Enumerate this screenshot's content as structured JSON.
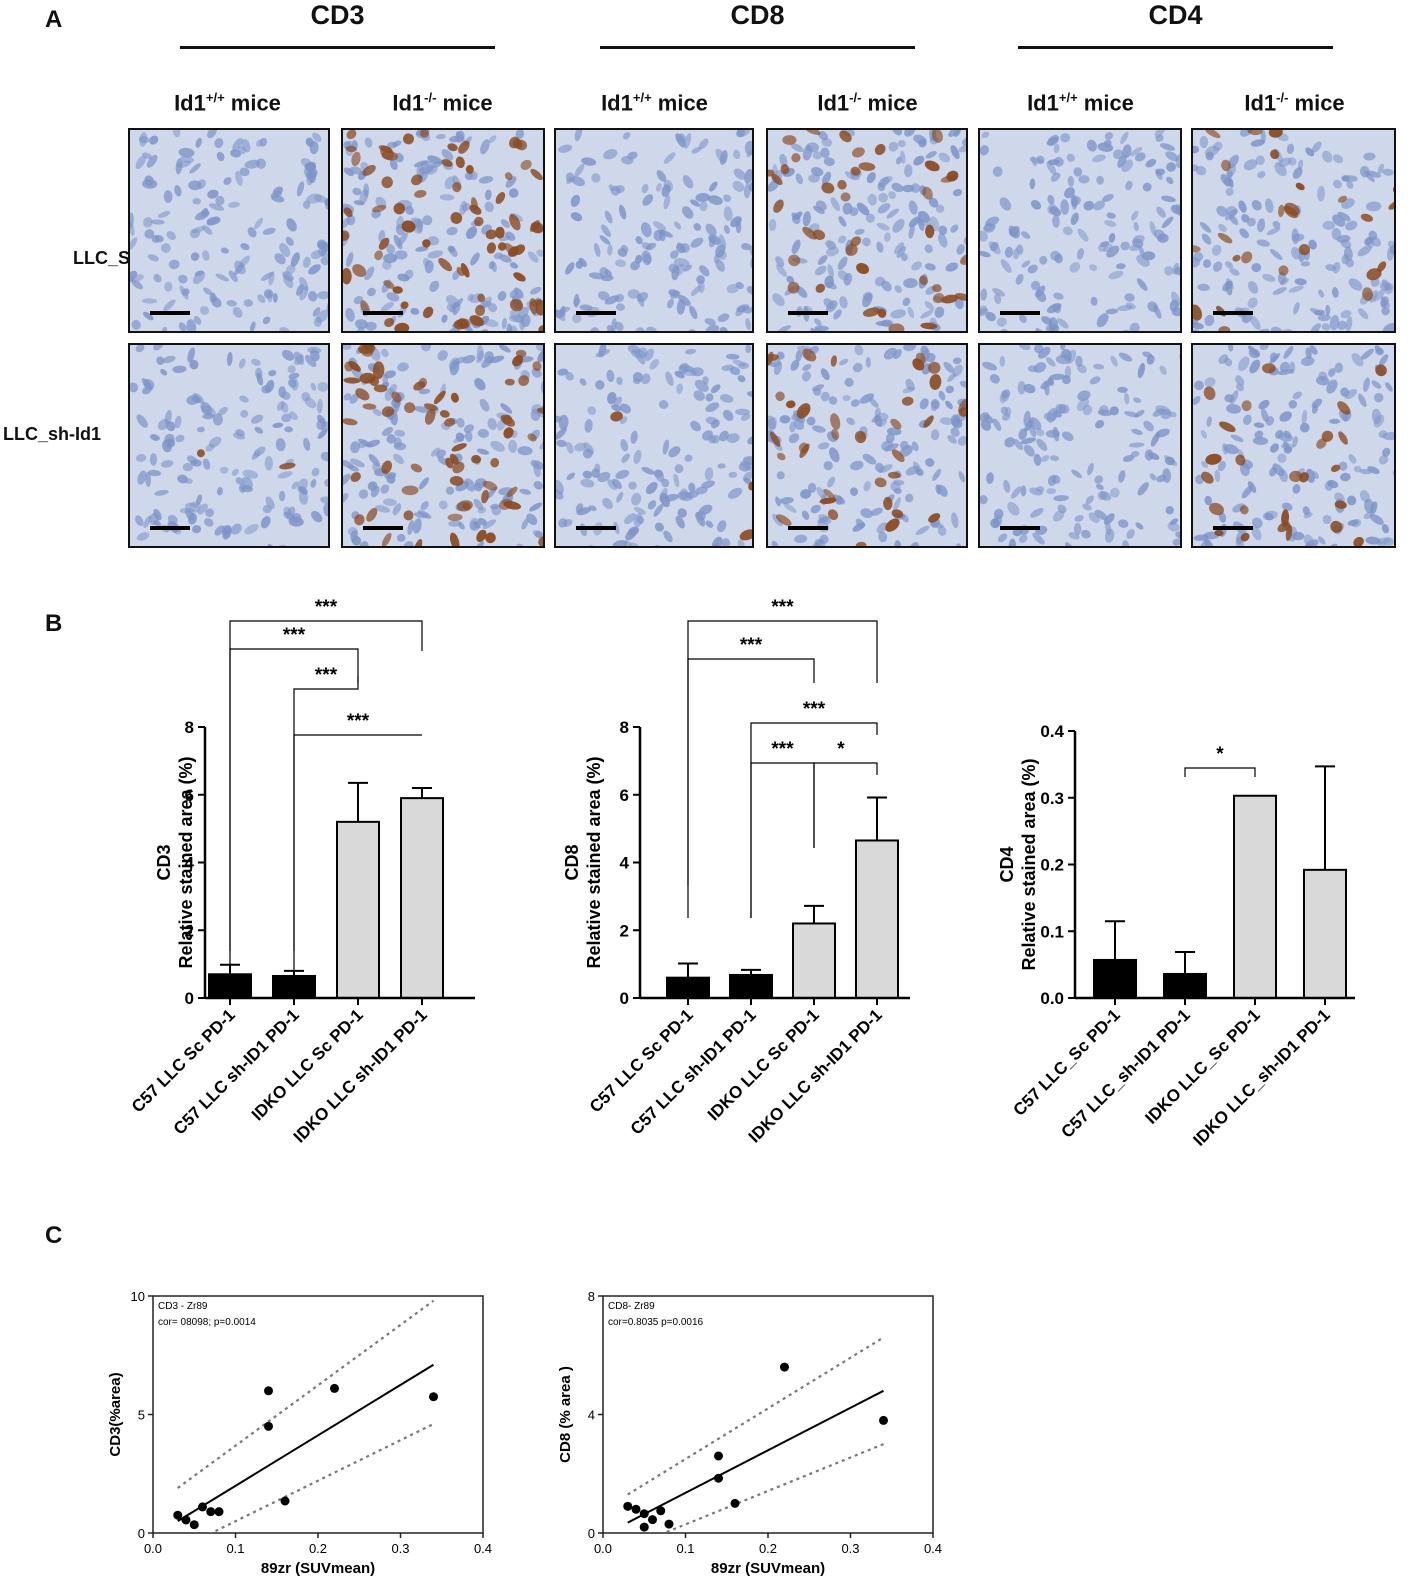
{
  "panel_a": {
    "letter": "A",
    "markers": [
      {
        "label": "CD3",
        "groups": [
          {
            "base": "Id1",
            "sup": "+/+",
            "suffix": " mice"
          },
          {
            "base": "Id1",
            "sup": "-/-",
            "suffix": " mice"
          }
        ]
      },
      {
        "label": "CD8",
        "groups": [
          {
            "base": "Id1",
            "sup": "+/+",
            "suffix": " mice"
          },
          {
            "base": "Id1",
            "sup": "-/-",
            "suffix": " mice"
          }
        ]
      },
      {
        "label": "CD4",
        "groups": [
          {
            "base": "Id1",
            "sup": "+/+",
            "suffix": " mice"
          },
          {
            "base": "Id1",
            "sup": "-/-",
            "suffix": " mice"
          }
        ]
      }
    ],
    "rows": [
      "LLC_Sc",
      "LLC_sh-Id1"
    ],
    "stain_colors": {
      "background": "#cfd8ea",
      "nucleus": "#7d93c8",
      "positive": "#8a4a22"
    },
    "positive_density": [
      [
        0.0,
        1.0,
        0.0,
        0.55,
        0.0,
        0.35
      ],
      [
        0.03,
        0.9,
        0.04,
        0.5,
        0.0,
        0.35
      ]
    ]
  },
  "panel_b": {
    "letter": "B"
  },
  "panel_c": {
    "letter": "C"
  },
  "chart_data": [
    {
      "type": "bar",
      "title": "",
      "ylabel": "CD3\nRelative stained area (%)",
      "categories": [
        "C57 LLC Sc PD-1",
        "C57 LLC sh-ID1 PD-1",
        "IDKO LLC Sc PD-1",
        "IDKO LLC sh-ID1 PD-1"
      ],
      "values": [
        0.7,
        0.65,
        5.2,
        5.9
      ],
      "errors": [
        0.28,
        0.15,
        1.15,
        0.3
      ],
      "bar_colors": [
        "#000000",
        "#000000",
        "#d9d9d9",
        "#d9d9d9"
      ],
      "ylim": [
        0,
        8
      ],
      "yticks": [
        "0",
        "2",
        "4",
        "6",
        "8"
      ],
      "significance": [
        {
          "from": 0,
          "to": 3,
          "label": "***"
        },
        {
          "from": 0,
          "to": 2,
          "label": "***"
        },
        {
          "from": 1,
          "to": 2,
          "label": "***"
        },
        {
          "from": 1,
          "to": 3,
          "label": "***"
        }
      ]
    },
    {
      "type": "bar",
      "title": "",
      "ylabel": "CD8\nRelative stained area (%)",
      "categories": [
        "C57 LLC Sc PD-1",
        "C57 LLC sh-ID1 PD-1",
        "IDKO LLC Sc PD-1",
        "IDKO LLC sh-ID1 PD-1"
      ],
      "values": [
        0.6,
        0.68,
        2.2,
        4.65
      ],
      "errors": [
        0.42,
        0.15,
        0.52,
        1.27
      ],
      "bar_colors": [
        "#000000",
        "#000000",
        "#d9d9d9",
        "#d9d9d9"
      ],
      "ylim": [
        0,
        8
      ],
      "yticks": [
        "0",
        "2",
        "4",
        "6",
        "8"
      ],
      "significance": [
        {
          "from": 0,
          "to": 3,
          "label": "***"
        },
        {
          "from": 0,
          "to": 2,
          "label": "***"
        },
        {
          "from": 1,
          "to": 3,
          "label": "***"
        },
        {
          "from": 1,
          "to": 2,
          "label": "***"
        },
        {
          "from": 2,
          "to": 3,
          "label": "*"
        }
      ]
    },
    {
      "type": "bar",
      "title": "",
      "ylabel": "CD4\nRelative stained area (%)",
      "categories": [
        "C57 LLC_Sc PD-1",
        "C57 LLC_sh-ID1 PD-1",
        "IDKO LLC_Sc PD-1",
        "IDKO LLC_sh-ID1 PD-1"
      ],
      "values": [
        0.057,
        0.036,
        0.303,
        0.192
      ],
      "errors": [
        0.058,
        0.033,
        0.0,
        0.155
      ],
      "bar_colors": [
        "#000000",
        "#000000",
        "#d9d9d9",
        "#d9d9d9"
      ],
      "ylim": [
        0,
        0.4
      ],
      "yticks": [
        "0.0",
        "0.1",
        "0.2",
        "0.3",
        "0.4"
      ],
      "significance": [
        {
          "from": 1,
          "to": 2,
          "label": "*"
        }
      ]
    },
    {
      "type": "scatter",
      "title": "",
      "xlabel": "89zr (SUVmean)",
      "ylabel": "CD3(%area)",
      "annotation": [
        "CD3 - Zr89",
        "cor= 08098; p=0.0014"
      ],
      "xlim": [
        0.0,
        0.4
      ],
      "ylim": [
        0,
        10
      ],
      "xticks": [
        "0.0",
        "0.1",
        "0.2",
        "0.3",
        "0.4"
      ],
      "yticks": [
        "0",
        "5",
        "10"
      ],
      "points": [
        [
          0.03,
          0.75
        ],
        [
          0.04,
          0.55
        ],
        [
          0.05,
          0.35
        ],
        [
          0.06,
          1.1
        ],
        [
          0.07,
          0.9
        ],
        [
          0.08,
          0.9
        ],
        [
          0.14,
          6.0
        ],
        [
          0.14,
          4.5
        ],
        [
          0.16,
          1.35
        ],
        [
          0.22,
          6.1
        ],
        [
          0.34,
          5.75
        ]
      ],
      "fit_line": {
        "x": [
          0.03,
          0.34
        ],
        "y": [
          0.5,
          7.1
        ]
      },
      "ci_upper": {
        "x": [
          0.03,
          0.34
        ],
        "y": [
          1.9,
          9.8
        ]
      },
      "ci_lower": {
        "x": [
          0.03,
          0.34
        ],
        "y": [
          -0.7,
          4.6
        ]
      }
    },
    {
      "type": "scatter",
      "title": "",
      "xlabel": "89zr (SUVmean)",
      "ylabel": "CD8 (% area )",
      "annotation": [
        "CD8- Zr89",
        "cor=0.8035 p=0.0016"
      ],
      "xlim": [
        0.0,
        0.4
      ],
      "ylim": [
        0,
        8
      ],
      "xticks": [
        "0.0",
        "0.1",
        "0.2",
        "0.3",
        "0.4"
      ],
      "yticks": [
        "0",
        "4",
        "8"
      ],
      "points": [
        [
          0.03,
          0.9
        ],
        [
          0.04,
          0.8
        ],
        [
          0.05,
          0.2
        ],
        [
          0.05,
          0.65
        ],
        [
          0.06,
          0.45
        ],
        [
          0.07,
          0.75
        ],
        [
          0.08,
          0.3
        ],
        [
          0.14,
          2.6
        ],
        [
          0.14,
          1.85
        ],
        [
          0.16,
          1.0
        ],
        [
          0.22,
          5.6
        ],
        [
          0.34,
          3.8
        ]
      ],
      "fit_line": {
        "x": [
          0.03,
          0.34
        ],
        "y": [
          0.35,
          4.8
        ]
      },
      "ci_upper": {
        "x": [
          0.03,
          0.34
        ],
        "y": [
          1.3,
          6.6
        ]
      },
      "ci_lower": {
        "x": [
          0.03,
          0.34
        ],
        "y": [
          -0.5,
          3.0
        ]
      }
    }
  ]
}
